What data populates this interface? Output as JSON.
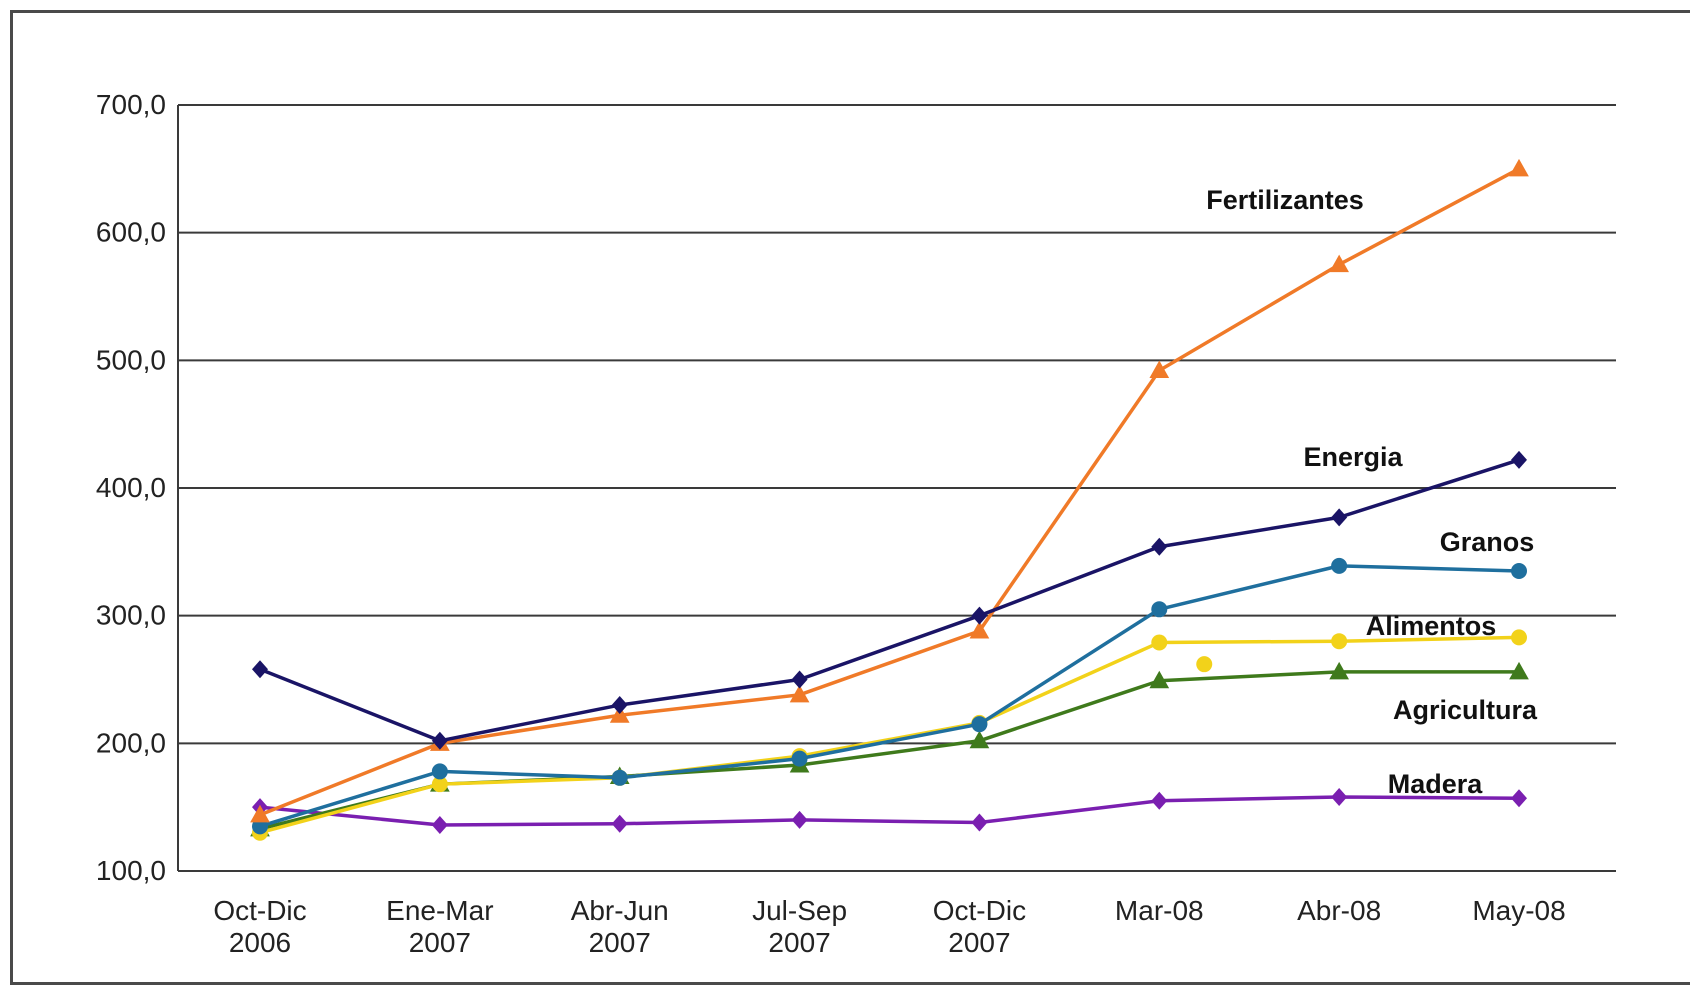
{
  "chart_data": {
    "type": "line",
    "title": "",
    "xlabel": "",
    "ylabel": "",
    "ylim": [
      100,
      700
    ],
    "yticks": [
      100,
      200,
      300,
      400,
      500,
      600,
      700
    ],
    "ytick_labels": [
      "100,0",
      "200,0",
      "300,0",
      "400,0",
      "500,0",
      "600,0",
      "700,0"
    ],
    "categories": [
      [
        "Oct-Dic",
        "2006"
      ],
      [
        "Ene-Mar",
        "2007"
      ],
      [
        "Abr-Jun",
        "2007"
      ],
      [
        "Jul-Sep",
        "2007"
      ],
      [
        "Oct-Dic",
        "2007"
      ],
      [
        "Mar-08"
      ],
      [
        "Abr-08"
      ],
      [
        "May-08"
      ]
    ],
    "grid": "horizontal",
    "legend": "inline labels",
    "series": [
      {
        "name": "Fertilizantes",
        "color": "#f07a28",
        "marker": "triangle",
        "values": [
          144,
          200,
          222,
          238,
          288,
          492,
          575,
          650
        ]
      },
      {
        "name": "Energia",
        "color": "#1a1466",
        "marker": "diamond",
        "values": [
          258,
          202,
          230,
          250,
          300,
          354,
          377,
          422
        ]
      },
      {
        "name": "Granos",
        "color": "#1f6f9e",
        "marker": "circle",
        "values": [
          135,
          178,
          173,
          188,
          215,
          305,
          339,
          335
        ]
      },
      {
        "name": "Alimentos",
        "color": "#f2d21a",
        "marker": "circle",
        "values": [
          130,
          168,
          173,
          190,
          216,
          279,
          280,
          283
        ]
      },
      {
        "name": "Agricultura",
        "color": "#3f7a1c",
        "marker": "triangle",
        "values": [
          133,
          168,
          174,
          183,
          202,
          249,
          256,
          256
        ]
      },
      {
        "name": "Madera",
        "color": "#7a1fb0",
        "marker": "diamond",
        "values": [
          150,
          136,
          137,
          140,
          138,
          155,
          158,
          157
        ]
      }
    ],
    "annotations": [
      {
        "text": "Fertilizantes",
        "series": "Fertilizantes"
      },
      {
        "text": "Energia",
        "series": "Energia"
      },
      {
        "text": "Granos",
        "series": "Granos"
      },
      {
        "text": "Alimentos",
        "series": "Alimentos"
      },
      {
        "text": "Agricultura",
        "series": "Agricultura"
      },
      {
        "text": "Madera",
        "series": "Madera"
      }
    ],
    "stray_point": {
      "series": "Alimentos",
      "value": 262,
      "between": [
        5,
        6
      ]
    }
  }
}
